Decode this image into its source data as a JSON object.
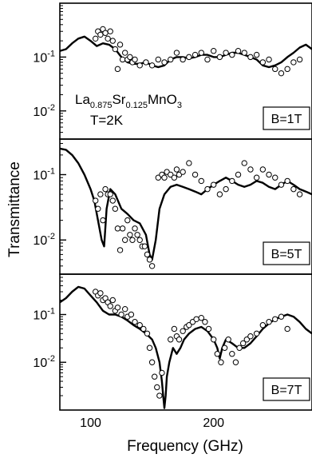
{
  "figure": {
    "ylabel": "Transmittance",
    "xlabel": "Frequency (GHz)",
    "sample_base": [
      "La",
      "Sr",
      "MnO"
    ],
    "sample_sub": [
      "0.875",
      "0.125",
      "3"
    ],
    "temperature": "T=2K"
  },
  "chart_data": [
    {
      "type": "scatter",
      "panel": "top",
      "annotation": "B=1T",
      "xlim": [
        75,
        280
      ],
      "ylim": [
        0.003,
        1.0
      ],
      "yscale": "log",
      "ytick_labels": [
        {
          "value": 0.1,
          "base": "10",
          "exp": "-1"
        },
        {
          "value": 0.01,
          "base": "10",
          "exp": "-2"
        }
      ],
      "x_ticks": [
        100,
        200
      ],
      "x_tick_labels": [],
      "series": [
        {
          "kind": "measured-points",
          "x": [
            104,
            106,
            108,
            110,
            112,
            114,
            116,
            118,
            120,
            122,
            124,
            126,
            128,
            130,
            132,
            134,
            136,
            140,
            145,
            150,
            155,
            160,
            165,
            170,
            175,
            180,
            185,
            190,
            195,
            200,
            205,
            210,
            215,
            220,
            225,
            230,
            235,
            240,
            245,
            250,
            255,
            260,
            265,
            270
          ],
          "y": [
            0.22,
            0.3,
            0.26,
            0.33,
            0.28,
            0.22,
            0.3,
            0.2,
            0.14,
            0.06,
            0.17,
            0.09,
            0.12,
            0.09,
            0.1,
            0.08,
            0.09,
            0.07,
            0.08,
            0.07,
            0.09,
            0.08,
            0.09,
            0.12,
            0.09,
            0.1,
            0.11,
            0.12,
            0.09,
            0.13,
            0.1,
            0.12,
            0.11,
            0.13,
            0.12,
            0.1,
            0.11,
            0.08,
            0.09,
            0.06,
            0.05,
            0.06,
            0.08,
            0.09
          ]
        },
        {
          "kind": "fit-curve",
          "x": [
            75,
            80,
            85,
            90,
            95,
            100,
            105,
            110,
            115,
            120,
            125,
            130,
            135,
            140,
            145,
            150,
            155,
            160,
            165,
            170,
            175,
            180,
            185,
            190,
            195,
            200,
            205,
            210,
            215,
            220,
            225,
            230,
            235,
            240,
            245,
            250,
            255,
            260,
            265,
            270,
            275,
            280
          ],
          "y": [
            0.13,
            0.14,
            0.18,
            0.22,
            0.24,
            0.2,
            0.16,
            0.18,
            0.17,
            0.14,
            0.1,
            0.08,
            0.075,
            0.075,
            0.08,
            0.07,
            0.065,
            0.07,
            0.09,
            0.1,
            0.1,
            0.095,
            0.1,
            0.11,
            0.11,
            0.1,
            0.1,
            0.11,
            0.12,
            0.12,
            0.11,
            0.1,
            0.09,
            0.07,
            0.065,
            0.07,
            0.08,
            0.1,
            0.12,
            0.15,
            0.17,
            0.14
          ]
        }
      ]
    },
    {
      "type": "scatter",
      "panel": "middle",
      "annotation": "B=5T",
      "xlim": [
        75,
        280
      ],
      "ylim": [
        0.003,
        0.35
      ],
      "yscale": "log",
      "ytick_labels": [
        {
          "value": 0.1,
          "base": "10",
          "exp": "-1"
        },
        {
          "value": 0.01,
          "base": "10",
          "exp": "-2"
        }
      ],
      "x_ticks": [
        100,
        200
      ],
      "x_tick_labels": [],
      "series": [
        {
          "kind": "measured-points",
          "x": [
            104,
            106,
            108,
            110,
            112,
            114,
            116,
            118,
            120,
            122,
            124,
            126,
            128,
            130,
            132,
            134,
            136,
            138,
            140,
            142,
            144,
            146,
            148,
            150,
            155,
            158,
            160,
            162,
            165,
            168,
            170,
            172,
            175,
            180,
            185,
            190,
            195,
            200,
            205,
            210,
            215,
            220,
            225,
            230,
            235,
            240,
            245,
            250,
            255,
            260,
            265,
            270
          ],
          "y": [
            0.04,
            0.03,
            0.05,
            0.02,
            0.06,
            0.05,
            0.05,
            0.04,
            0.03,
            0.015,
            0.007,
            0.015,
            0.01,
            0.02,
            0.012,
            0.01,
            0.015,
            0.012,
            0.01,
            0.008,
            0.008,
            0.006,
            0.005,
            0.004,
            0.09,
            0.1,
            0.09,
            0.11,
            0.1,
            0.09,
            0.12,
            0.1,
            0.11,
            0.15,
            0.1,
            0.08,
            0.06,
            0.07,
            0.05,
            0.06,
            0.08,
            0.1,
            0.15,
            0.12,
            0.09,
            0.12,
            0.1,
            0.09,
            0.07,
            0.08,
            0.06,
            0.05
          ]
        },
        {
          "kind": "fit-curve",
          "x": [
            75,
            80,
            85,
            90,
            95,
            100,
            103,
            106,
            109,
            111,
            113,
            116,
            120,
            125,
            130,
            135,
            140,
            145,
            148,
            150,
            153,
            156,
            160,
            165,
            170,
            175,
            180,
            185,
            190,
            195,
            200,
            205,
            210,
            215,
            220,
            225,
            230,
            235,
            240,
            245,
            250,
            255,
            260,
            265,
            270,
            275,
            280
          ],
          "y": [
            0.25,
            0.24,
            0.2,
            0.15,
            0.1,
            0.06,
            0.04,
            0.02,
            0.01,
            0.008,
            0.03,
            0.06,
            0.05,
            0.03,
            0.025,
            0.02,
            0.018,
            0.012,
            0.006,
            0.005,
            0.01,
            0.03,
            0.05,
            0.065,
            0.07,
            0.065,
            0.06,
            0.055,
            0.05,
            0.06,
            0.07,
            0.08,
            0.09,
            0.08,
            0.07,
            0.065,
            0.07,
            0.08,
            0.075,
            0.065,
            0.06,
            0.07,
            0.08,
            0.07,
            0.06,
            0.055,
            0.05
          ]
        }
      ]
    },
    {
      "type": "scatter",
      "panel": "bottom",
      "annotation": "B=7T",
      "xlim": [
        75,
        280
      ],
      "ylim": [
        0.001,
        0.7
      ],
      "yscale": "log",
      "ytick_labels": [
        {
          "value": 0.1,
          "base": "10",
          "exp": "-1"
        },
        {
          "value": 0.01,
          "base": "10",
          "exp": "-2"
        }
      ],
      "x_ticks": [
        100,
        200
      ],
      "x_tick_labels": [
        "100",
        "200"
      ],
      "series": [
        {
          "kind": "measured-points",
          "x": [
            104,
            106,
            108,
            110,
            112,
            114,
            116,
            118,
            120,
            122,
            125,
            128,
            130,
            133,
            136,
            140,
            143,
            146,
            148,
            150,
            152,
            154,
            156,
            158,
            165,
            168,
            170,
            172,
            175,
            178,
            180,
            183,
            186,
            190,
            193,
            196,
            200,
            203,
            206,
            209,
            212,
            215,
            218,
            221,
            224,
            227,
            230,
            235,
            240,
            245,
            250,
            255,
            260
          ],
          "y": [
            0.3,
            0.25,
            0.28,
            0.2,
            0.22,
            0.18,
            0.15,
            0.2,
            0.12,
            0.14,
            0.1,
            0.13,
            0.09,
            0.1,
            0.07,
            0.06,
            0.05,
            0.04,
            0.02,
            0.01,
            0.005,
            0.003,
            0.002,
            0.006,
            0.03,
            0.05,
            0.035,
            0.03,
            0.045,
            0.055,
            0.06,
            0.07,
            0.08,
            0.085,
            0.07,
            0.05,
            0.03,
            0.015,
            0.01,
            0.02,
            0.03,
            0.015,
            0.01,
            0.02,
            0.025,
            0.03,
            0.035,
            0.04,
            0.06,
            0.07,
            0.08,
            0.09,
            0.05
          ]
        },
        {
          "kind": "fit-curve",
          "x": [
            75,
            80,
            85,
            90,
            95,
            100,
            105,
            110,
            115,
            120,
            125,
            130,
            135,
            140,
            145,
            150,
            153,
            156,
            158,
            159,
            160,
            161,
            162,
            164,
            167,
            170,
            173,
            176,
            180,
            185,
            190,
            195,
            200,
            203,
            205,
            207,
            210,
            215,
            220,
            225,
            230,
            235,
            240,
            245,
            250,
            255,
            260,
            265,
            270,
            275,
            280
          ],
          "y": [
            0.18,
            0.22,
            0.3,
            0.38,
            0.35,
            0.25,
            0.18,
            0.12,
            0.1,
            0.1,
            0.09,
            0.075,
            0.06,
            0.05,
            0.04,
            0.03,
            0.02,
            0.01,
            0.004,
            0.002,
            0.0011,
            0.002,
            0.005,
            0.01,
            0.02,
            0.015,
            0.02,
            0.03,
            0.04,
            0.05,
            0.055,
            0.045,
            0.03,
            0.02,
            0.012,
            0.02,
            0.03,
            0.025,
            0.02,
            0.02,
            0.025,
            0.035,
            0.05,
            0.065,
            0.08,
            0.09,
            0.1,
            0.09,
            0.07,
            0.05,
            0.04
          ]
        }
      ]
    }
  ]
}
